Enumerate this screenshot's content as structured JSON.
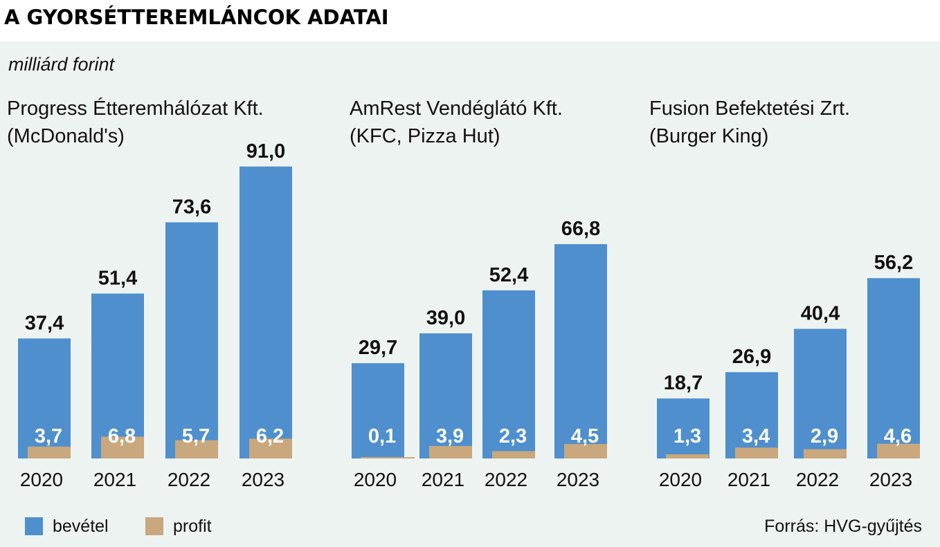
{
  "title": "A GYORSÉTTEREMLÁNCOK ADATAI",
  "unit_label": "milliárd forint",
  "legend": {
    "revenue_label": "bevétel",
    "profit_label": "profit"
  },
  "source": "Forrás: HVG-gyűjtés",
  "colors": {
    "revenue": "#4f8fcd",
    "profit": "#c8a87c",
    "panel_background": "#edf3f1"
  },
  "chart_data": [
    {
      "type": "bar",
      "title": "Progress Étteremhálózat Kft.",
      "subtitle": "(McDonald's)",
      "categories": [
        "2020",
        "2021",
        "2022",
        "2023"
      ],
      "series": [
        {
          "name": "bevétel",
          "values": [
            37.4,
            51.4,
            73.6,
            91.0
          ],
          "labels": [
            "37,4",
            "51,4",
            "73,6",
            "91,0"
          ]
        },
        {
          "name": "profit",
          "values": [
            3.7,
            6.8,
            5.7,
            6.2
          ],
          "labels": [
            "3,7",
            "6,8",
            "5,7",
            "6,2"
          ]
        }
      ],
      "ylim": [
        0,
        100
      ],
      "grid": false
    },
    {
      "type": "bar",
      "title": "AmRest Vendéglátó Kft.",
      "subtitle": "(KFC, Pizza Hut)",
      "categories": [
        "2020",
        "2021",
        "2022",
        "2023"
      ],
      "series": [
        {
          "name": "bevétel",
          "values": [
            29.7,
            39.0,
            52.4,
            66.8
          ],
          "labels": [
            "29,7",
            "39,0",
            "52,4",
            "66,8"
          ]
        },
        {
          "name": "profit",
          "values": [
            0.1,
            3.9,
            2.3,
            4.5
          ],
          "labels": [
            "0,1",
            "3,9",
            "2,3",
            "4,5"
          ]
        }
      ],
      "ylim": [
        0,
        100
      ],
      "grid": false
    },
    {
      "type": "bar",
      "title": "Fusion Befektetési Zrt.",
      "subtitle": "(Burger King)",
      "categories": [
        "2020",
        "2021",
        "2022",
        "2023"
      ],
      "series": [
        {
          "name": "bevétel",
          "values": [
            18.7,
            26.9,
            40.4,
            56.2
          ],
          "labels": [
            "18,7",
            "26,9",
            "40,4",
            "56,2"
          ]
        },
        {
          "name": "profit",
          "values": [
            1.3,
            3.4,
            2.9,
            4.6
          ],
          "labels": [
            "1,3",
            "3,4",
            "2,9",
            "4,6"
          ]
        }
      ],
      "ylim": [
        0,
        100
      ],
      "grid": false
    }
  ]
}
